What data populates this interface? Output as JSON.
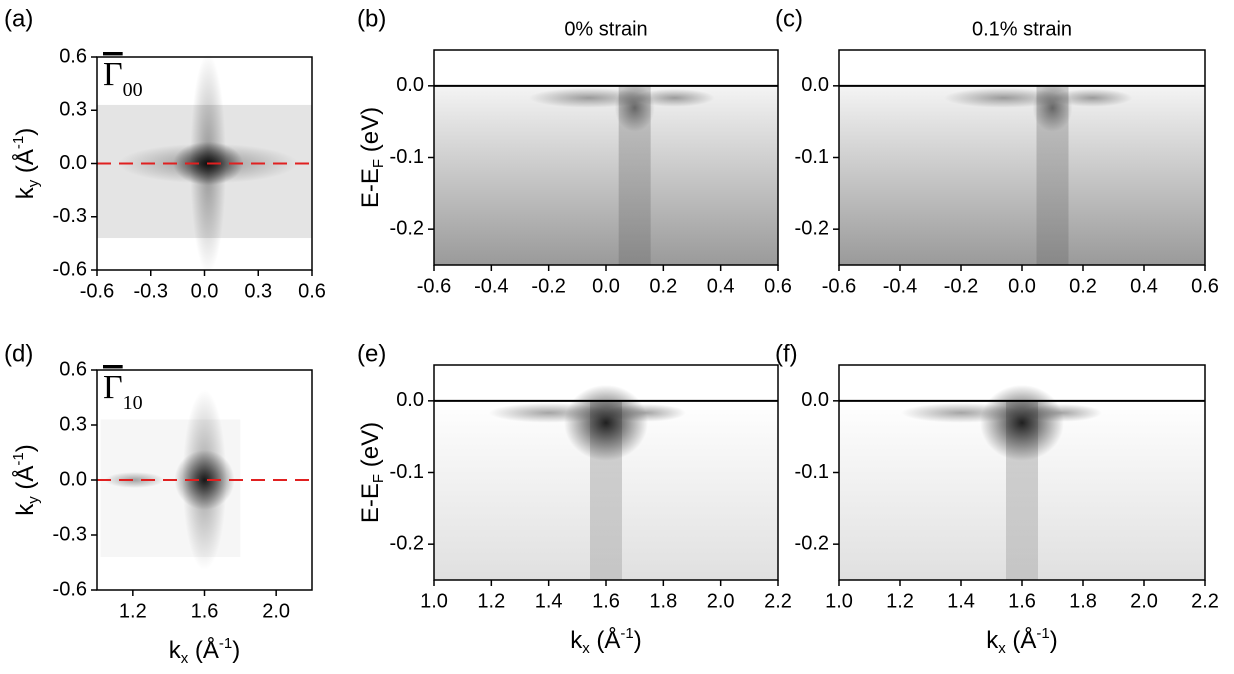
{
  "chart_data": [
    {
      "type": "heatmap",
      "panel": "(a)",
      "ylabel": {
        "main": "k",
        "sub": "y",
        "unit": " (Å",
        "sup": "-1",
        "end": ")"
      },
      "annotation": {
        "symbol": "Γ",
        "sub": "00"
      },
      "xlim": [
        -0.6,
        0.6
      ],
      "ylim": [
        -0.6,
        0.6
      ],
      "xticks": [
        -0.6,
        -0.3,
        {
          "value": 0,
          "label": "0.0"
        },
        0.3,
        0.6
      ],
      "yticks": [
        -0.6,
        -0.3,
        {
          "value": 0,
          "label": "0.0"
        },
        0.3,
        0.6
      ],
      "reference_line": {
        "value": 0,
        "color": "#e02020",
        "dashed": true
      }
    },
    {
      "type": "band",
      "panel": "(b)",
      "title": "0% strain",
      "ylabel": {
        "main": "E-E",
        "sub": "F",
        "unit": " (eV)"
      },
      "xlim": [
        -0.6,
        0.6
      ],
      "ylim": [
        -0.25,
        0.05
      ],
      "xticks": [
        -0.6,
        -0.4,
        -0.2,
        {
          "value": 0,
          "label": "0.0"
        },
        0.2,
        0.4,
        0.6
      ],
      "yticks": [
        -0.2,
        -0.1,
        {
          "value": 0,
          "label": "0.0"
        }
      ],
      "reference_line": {
        "value": 0,
        "color": "#000000",
        "dashed": false
      }
    },
    {
      "type": "band",
      "panel": "(c)",
      "title": "0.1% strain",
      "xlim": [
        -0.6,
        0.6
      ],
      "ylim": [
        -0.25,
        0.05
      ],
      "xticks": [
        -0.6,
        -0.4,
        -0.2,
        {
          "value": 0,
          "label": "0.0"
        },
        0.2,
        0.4,
        0.6
      ],
      "yticks": [
        -0.2,
        -0.1,
        {
          "value": 0,
          "label": "0.0"
        }
      ],
      "reference_line": {
        "value": 0,
        "color": "#000000",
        "dashed": false
      }
    },
    {
      "type": "heatmap",
      "panel": "(d)",
      "xlabel": {
        "main": "k",
        "sub": "x",
        "unit": " (Å",
        "sup": "-1",
        "end": ")"
      },
      "ylabel": {
        "main": "k",
        "sub": "y",
        "unit": " (Å",
        "sup": "-1",
        "end": ")"
      },
      "annotation": {
        "symbol": "Γ",
        "sub": "10"
      },
      "xlim": [
        1.0,
        2.2
      ],
      "ylim": [
        -0.6,
        0.6
      ],
      "xticks": [
        1.2,
        1.6,
        {
          "value": 2,
          "label": "2.0"
        }
      ],
      "yticks": [
        -0.6,
        -0.3,
        {
          "value": 0,
          "label": "0.0"
        },
        0.3,
        0.6
      ],
      "reference_line": {
        "value": 0,
        "color": "#e02020",
        "dashed": true
      }
    },
    {
      "type": "band",
      "panel": "(e)",
      "xlabel": {
        "main": "k",
        "sub": "x",
        "unit": " (Å",
        "sup": "-1",
        "end": ")"
      },
      "ylabel": {
        "main": "E-E",
        "sub": "F",
        "unit": " (eV)"
      },
      "xlim": [
        1.0,
        2.2
      ],
      "ylim": [
        -0.25,
        0.05
      ],
      "xticks": [
        {
          "value": 1,
          "label": "1.0"
        },
        1.2,
        1.4,
        1.6,
        1.8,
        {
          "value": 2,
          "label": "2.0"
        },
        2.2
      ],
      "yticks": [
        -0.2,
        -0.1,
        {
          "value": 0,
          "label": "0.0"
        }
      ],
      "reference_line": {
        "value": 0,
        "color": "#000000",
        "dashed": false
      }
    },
    {
      "type": "band",
      "panel": "(f)",
      "xlabel": {
        "main": "k",
        "sub": "x",
        "unit": " (Å",
        "sup": "-1",
        "end": ")"
      },
      "xlim": [
        1.0,
        2.2
      ],
      "ylim": [
        -0.25,
        0.05
      ],
      "xticks": [
        {
          "value": 1,
          "label": "1.0"
        },
        1.2,
        1.4,
        1.6,
        1.8,
        {
          "value": 2,
          "label": "2.0"
        },
        2.2
      ],
      "yticks": [
        -0.2,
        -0.1,
        {
          "value": 0,
          "label": "0.0"
        }
      ],
      "reference_line": {
        "value": 0,
        "color": "#000000",
        "dashed": false
      }
    }
  ]
}
